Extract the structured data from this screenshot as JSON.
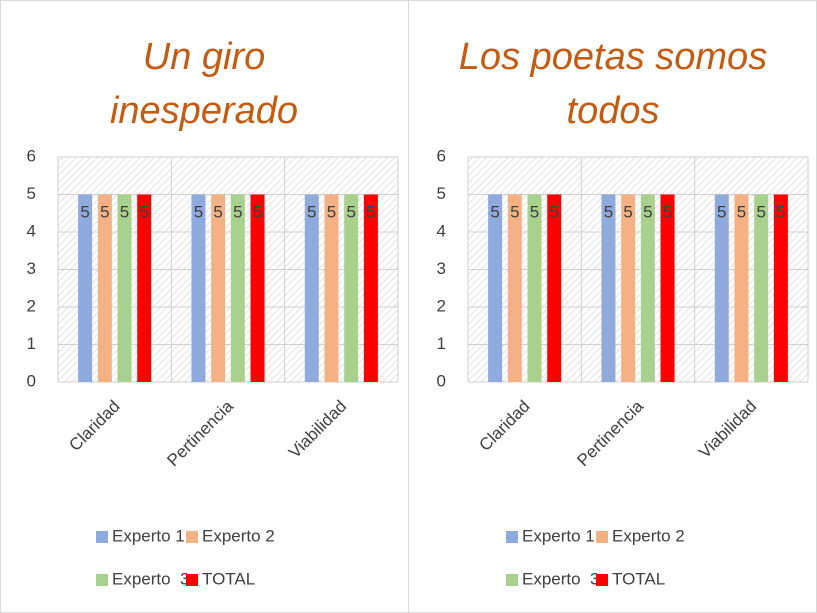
{
  "chart_data": [
    {
      "type": "bar",
      "title": "Un giro inesperado",
      "categories": [
        "Claridad",
        "Pertinencia",
        "Viabilidad"
      ],
      "series": [
        {
          "name": "Experto 1",
          "color": "#8faadc",
          "values": [
            5,
            5,
            5
          ]
        },
        {
          "name": "Experto 2",
          "color": "#f4b183",
          "values": [
            5,
            5,
            5
          ]
        },
        {
          "name": "Experto  3",
          "color": "#a9d18e",
          "values": [
            5,
            5,
            5
          ]
        },
        {
          "name": "TOTAL",
          "color": "#ff0000",
          "values": [
            5,
            5,
            5
          ]
        }
      ],
      "ylim": [
        0,
        6
      ],
      "yticks": [
        0,
        1,
        2,
        3,
        4,
        5,
        6
      ],
      "grid": true,
      "legend": "bottom"
    },
    {
      "type": "bar",
      "title": "Los poetas somos todos",
      "categories": [
        "Claridad",
        "Pertinencia",
        "Viabilidad"
      ],
      "series": [
        {
          "name": "Experto 1",
          "color": "#8faadc",
          "values": [
            5,
            5,
            5
          ]
        },
        {
          "name": "Experto 2",
          "color": "#f4b183",
          "values": [
            5,
            5,
            5
          ]
        },
        {
          "name": "Experto  3",
          "color": "#a9d18e",
          "values": [
            5,
            5,
            5
          ]
        },
        {
          "name": "TOTAL",
          "color": "#ff0000",
          "values": [
            5,
            5,
            5
          ]
        }
      ],
      "ylim": [
        0,
        6
      ],
      "yticks": [
        0,
        1,
        2,
        3,
        4,
        5,
        6
      ],
      "grid": true,
      "legend": "bottom"
    }
  ]
}
